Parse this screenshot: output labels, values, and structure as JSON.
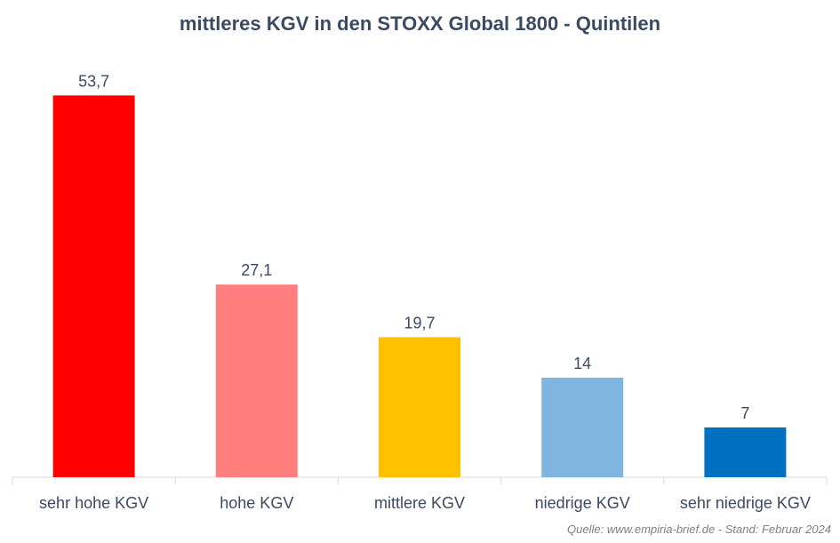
{
  "chart_data": {
    "type": "bar",
    "title": "mittleres KGV in den STOXX Global 1800 - Quintilen",
    "categories": [
      "sehr hohe KGV",
      "hohe KGV",
      "mittlere KGV",
      "niedrige KGV",
      "sehr niedrige KGV"
    ],
    "values": [
      53.7,
      27.1,
      19.7,
      14,
      7
    ],
    "value_labels": [
      "53,7",
      "27,1",
      "19,7",
      "14",
      "7"
    ],
    "colors": [
      "#FF0000",
      "#FF7F7F",
      "#FFC000",
      "#7FB5DE",
      "#0070C0"
    ],
    "xlabel": "",
    "ylabel": "",
    "ylim": [
      0,
      60
    ],
    "grid": false,
    "legend": "none"
  },
  "source": "Quelle: www.empiria-brief.de - Stand: Februar 2024"
}
